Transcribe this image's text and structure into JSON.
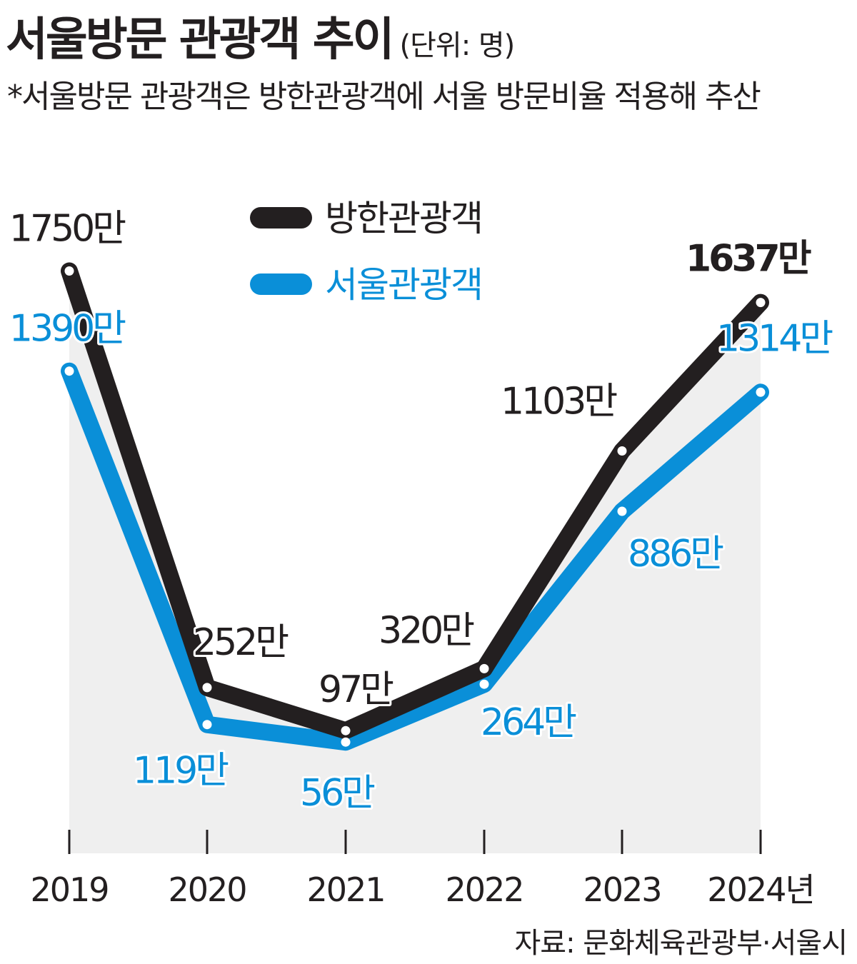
{
  "title": "서울방문 관광객 추이",
  "unit": "(단위: 명)",
  "note": "*서울방문 관광객은 방한관광객에 서울 방문비율 적용해 추산",
  "source": "자료: 문화체육관광부·서울시",
  "colors": {
    "korea": "#231f20",
    "seoul": "#0a8fd8",
    "area": "#efefef"
  },
  "chart_data": {
    "type": "line",
    "x": [
      "2019",
      "2020",
      "2021",
      "2022",
      "2023",
      "2024"
    ],
    "x_tick_labels": [
      "2019",
      "2020",
      "2021",
      "2022",
      "2023",
      "2024년"
    ],
    "ylim": [
      0,
      2000
    ],
    "value_unit": "만 명",
    "grid": false,
    "legend_position": "top-center",
    "series": [
      {
        "name": "방한관광객",
        "color": "#231f20",
        "values": [
          1750,
          252,
          97,
          320,
          1103,
          1637
        ],
        "labels": [
          "1750만",
          "252만",
          "97만",
          "320만",
          "1103만",
          "1637만"
        ]
      },
      {
        "name": "서울관광객",
        "color": "#0a8fd8",
        "values": [
          1390,
          119,
          56,
          264,
          886,
          1314
        ],
        "labels": [
          "1390만",
          "119만",
          "56만",
          "264만",
          "886만",
          "1314만"
        ]
      }
    ]
  }
}
